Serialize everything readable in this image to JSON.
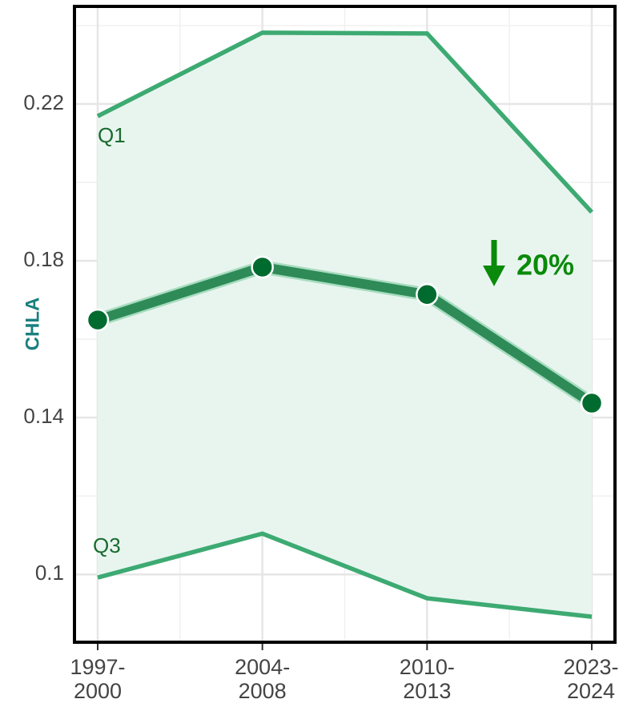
{
  "chart_data": {
    "type": "line",
    "ylabel": "CHLA",
    "categories": [
      "1997-2000",
      "2004-2008",
      "2010-2013",
      "2023-2024"
    ],
    "series": [
      {
        "name": "Q1",
        "color": "#3daa72",
        "values": [
          0.2169,
          0.2382,
          0.238,
          0.1924
        ]
      },
      {
        "name": "Q3",
        "color": "#3daa72",
        "values": [
          0.0992,
          0.1104,
          0.0939,
          0.0892
        ]
      },
      {
        "color": "#2e8b57",
        "marker_color": "#006b2e",
        "markers": true,
        "values": [
          0.1649,
          0.1784,
          0.1714,
          0.1437
        ]
      }
    ],
    "band_color": "#e8f5ef",
    "annotation": "20%",
    "annotation_color": "#0a8a0a",
    "ylim": [
      0.0827,
      0.2449
    ],
    "yticks": [
      0.1,
      0.14,
      0.18,
      0.22
    ],
    "grid": true
  }
}
